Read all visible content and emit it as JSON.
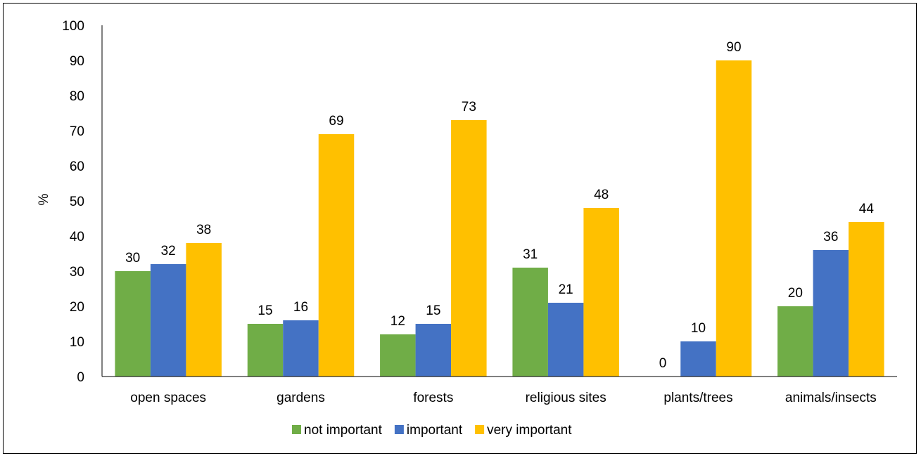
{
  "chart_data": {
    "type": "bar",
    "title": "",
    "xlabel": "",
    "ylabel": "%",
    "ylim": [
      0,
      100
    ],
    "yticks": [
      "0",
      "10",
      "20",
      "30",
      "40",
      "50",
      "60",
      "70",
      "80",
      "90",
      "100"
    ],
    "grid": false,
    "legend_position": "bottom",
    "data_labels": true,
    "categories": [
      "open spaces",
      "gardens",
      "forests",
      "religious sites",
      "plants/trees",
      "animals/insects"
    ],
    "series": [
      {
        "name": "not important",
        "color": "#70AD47",
        "values": [
          30,
          15,
          12,
          31,
          0,
          20
        ]
      },
      {
        "name": "important",
        "color": "#4472C4",
        "values": [
          32,
          16,
          15,
          21,
          10,
          36
        ]
      },
      {
        "name": "very important",
        "color": "#FFC000",
        "values": [
          38,
          69,
          73,
          48,
          90,
          44
        ]
      }
    ]
  }
}
